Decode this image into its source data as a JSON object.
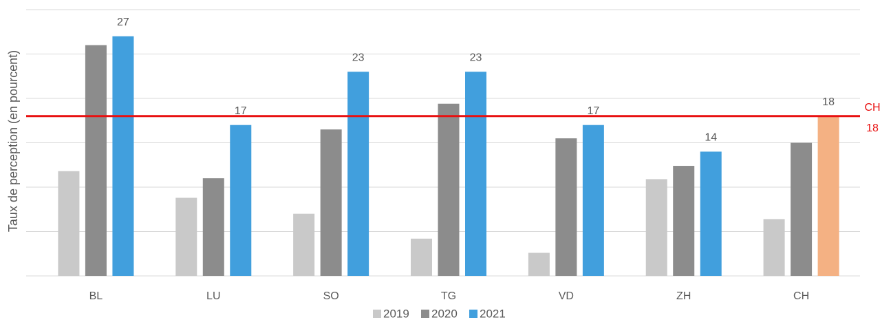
{
  "chart_data": {
    "type": "bar",
    "y_label": "Taux de perception (en pourcent)",
    "categories": [
      "BL",
      "LU",
      "SO",
      "TG",
      "VD",
      "ZH",
      "CH"
    ],
    "series": [
      {
        "name": "2019",
        "color": "#c9c9c9",
        "values": [
          11.8,
          8.8,
          7.0,
          4.2,
          2.6,
          10.9,
          6.4
        ]
      },
      {
        "name": "2020",
        "color": "#8c8c8c",
        "values": [
          26.0,
          11.0,
          16.5,
          19.4,
          15.5,
          12.4,
          15.0
        ]
      },
      {
        "name": "2021",
        "color": "#419fdd",
        "values": [
          27,
          17,
          23,
          23,
          17,
          14,
          18
        ],
        "show_labels": true,
        "colors": [
          "#419fdd",
          "#419fdd",
          "#419fdd",
          "#419fdd",
          "#419fdd",
          "#419fdd",
          "#f4b183"
        ]
      }
    ],
    "reference_line": {
      "value": 18,
      "label": "CH",
      "color": "#e81010"
    },
    "ylim": [
      0,
      30
    ],
    "yticks": [
      0,
      5,
      10,
      15,
      20,
      25,
      30
    ],
    "grid": true,
    "legend": "bottom"
  }
}
